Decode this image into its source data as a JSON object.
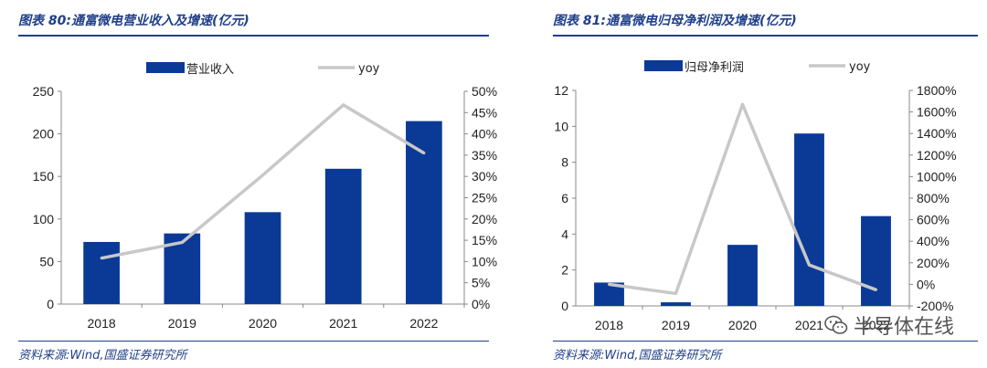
{
  "colors": {
    "bar": "#0a3a96",
    "line": "#c8c8c8",
    "rule": "#1f3f8a"
  },
  "left": {
    "title": "图表 80:通富微电营业收入及增速(亿元)",
    "source": "资料来源:Wind,国盛证券研究所"
  },
  "right": {
    "title": "图表 81:通富微电归母净利润及增速(亿元)",
    "source": "资料来源:Wind,国盛证券研究所"
  },
  "watermark": {
    "text": "半导体在线",
    "icon": "wechat-icon"
  },
  "chart_data": [
    {
      "type": "bar+line",
      "title": "通富微电营业收入及增速(亿元)",
      "categories": [
        "2018",
        "2019",
        "2020",
        "2021",
        "2022"
      ],
      "series": [
        {
          "name": "营业收入",
          "type": "bar",
          "axis": "left",
          "values": [
            73,
            83,
            108,
            159,
            215
          ]
        },
        {
          "name": "yoy",
          "type": "line",
          "axis": "right",
          "values": [
            10.8,
            14.5,
            30.3,
            46.8,
            35.5
          ]
        }
      ],
      "y_left": {
        "min": 0,
        "max": 250,
        "step": 50,
        "ticks": [
          "0",
          "50",
          "100",
          "150",
          "200",
          "250"
        ]
      },
      "y_right": {
        "min": 0,
        "max": 50,
        "step": 5,
        "ticks": [
          "0%",
          "5%",
          "10%",
          "15%",
          "20%",
          "25%",
          "30%",
          "35%",
          "40%",
          "45%",
          "50%"
        ]
      },
      "legend_position": "top"
    },
    {
      "type": "bar+line",
      "title": "通富微电归母净利润及增速(亿元)",
      "categories": [
        "2018",
        "2019",
        "2020",
        "2021",
        "2022"
      ],
      "series": [
        {
          "name": "归母净利润",
          "type": "bar",
          "axis": "left",
          "values": [
            1.3,
            0.2,
            3.4,
            9.6,
            5.0
          ]
        },
        {
          "name": "yoy",
          "type": "line",
          "axis": "right",
          "values": [
            0,
            -85,
            1670,
            180,
            -50
          ]
        }
      ],
      "y_left": {
        "min": 0,
        "max": 12,
        "step": 2,
        "ticks": [
          "0",
          "2",
          "4",
          "6",
          "8",
          "10",
          "12"
        ]
      },
      "y_right": {
        "min": -200,
        "max": 1800,
        "step": 200,
        "ticks": [
          "-200%",
          "0%",
          "200%",
          "400%",
          "600%",
          "800%",
          "1000%",
          "1200%",
          "1400%",
          "1600%",
          "1800%"
        ]
      },
      "legend_position": "top"
    }
  ]
}
